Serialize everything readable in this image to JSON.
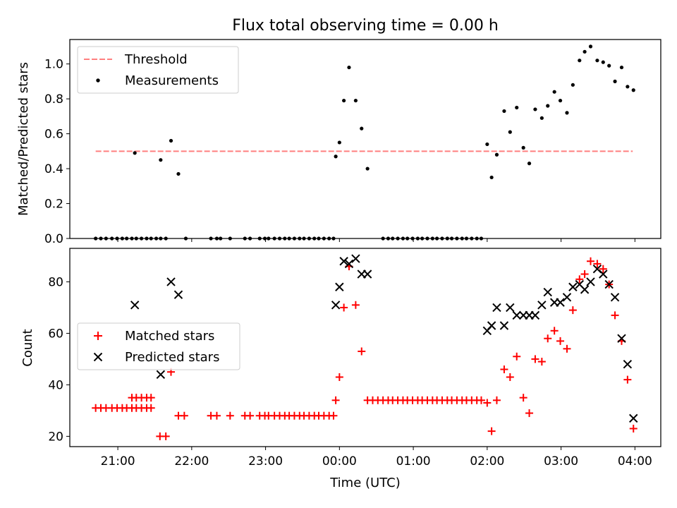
{
  "chart_data": {
    "title": "Flux total observing time = 0.00 h",
    "xlabel": "Time (UTC)",
    "x_unit": "hours (UTC clock, values after 24 are the following day)",
    "xlim": [
      20.35,
      28.35
    ],
    "x_ticks": [
      {
        "value": 21,
        "label": "21:00"
      },
      {
        "value": 22,
        "label": "22:00"
      },
      {
        "value": 23,
        "label": "23:00"
      },
      {
        "value": 24,
        "label": "00:00"
      },
      {
        "value": 25,
        "label": "01:00"
      },
      {
        "value": 26,
        "label": "02:00"
      },
      {
        "value": 27,
        "label": "03:00"
      },
      {
        "value": 28,
        "label": "04:00"
      }
    ],
    "top": {
      "type": "scatter",
      "ylabel": "Matched/Predicted stars",
      "ylim": [
        0,
        1.14
      ],
      "y_ticks": [
        "0.0",
        "0.2",
        "0.4",
        "0.6",
        "0.8",
        "1.0"
      ],
      "legend_position": "upper-left",
      "threshold": {
        "name": "Threshold",
        "y": 0.5,
        "x_start": 20.7,
        "x_end": 27.97,
        "color": "#ff7f7f"
      },
      "measurements": {
        "name": "Measurements",
        "color": "#000000",
        "points": [
          [
            20.7,
            0
          ],
          [
            20.77,
            0
          ],
          [
            20.84,
            0
          ],
          [
            20.92,
            0
          ],
          [
            20.99,
            0
          ],
          [
            21.06,
            0
          ],
          [
            21.12,
            0
          ],
          [
            21.19,
            0
          ],
          [
            21.25,
            0
          ],
          [
            21.32,
            0
          ],
          [
            21.39,
            0
          ],
          [
            21.45,
            0
          ],
          [
            21.52,
            0
          ],
          [
            21.58,
            0
          ],
          [
            21.65,
            0
          ],
          [
            21.92,
            0
          ],
          [
            22.26,
            0
          ],
          [
            22.34,
            0
          ],
          [
            22.39,
            0
          ],
          [
            22.52,
            0
          ],
          [
            22.72,
            0
          ],
          [
            22.79,
            0
          ],
          [
            22.92,
            0
          ],
          [
            22.99,
            0
          ],
          [
            23.04,
            0
          ],
          [
            23.12,
            0
          ],
          [
            23.19,
            0
          ],
          [
            23.26,
            0
          ],
          [
            23.32,
            0
          ],
          [
            23.39,
            0
          ],
          [
            23.46,
            0
          ],
          [
            23.52,
            0
          ],
          [
            23.59,
            0
          ],
          [
            23.66,
            0
          ],
          [
            23.72,
            0
          ],
          [
            23.79,
            0
          ],
          [
            23.86,
            0
          ],
          [
            23.92,
            0
          ],
          [
            24.59,
            0
          ],
          [
            24.66,
            0
          ],
          [
            24.72,
            0
          ],
          [
            24.79,
            0
          ],
          [
            24.86,
            0
          ],
          [
            24.92,
            0
          ],
          [
            24.99,
            0
          ],
          [
            25.06,
            0
          ],
          [
            25.12,
            0
          ],
          [
            25.19,
            0
          ],
          [
            25.26,
            0
          ],
          [
            25.32,
            0
          ],
          [
            25.39,
            0
          ],
          [
            25.46,
            0
          ],
          [
            25.52,
            0
          ],
          [
            25.59,
            0
          ],
          [
            25.66,
            0
          ],
          [
            25.72,
            0
          ],
          [
            25.79,
            0
          ],
          [
            25.86,
            0
          ],
          [
            25.92,
            0
          ],
          [
            21.23,
            0.49
          ],
          [
            21.58,
            0.45
          ],
          [
            21.72,
            0.56
          ],
          [
            21.82,
            0.37
          ],
          [
            23.95,
            0.47
          ],
          [
            24.0,
            0.55
          ],
          [
            24.06,
            0.79
          ],
          [
            24.13,
            0.98
          ],
          [
            24.22,
            0.79
          ],
          [
            24.3,
            0.63
          ],
          [
            24.38,
            0.4
          ],
          [
            26.0,
            0.54
          ],
          [
            26.06,
            0.35
          ],
          [
            26.13,
            0.48
          ],
          [
            26.23,
            0.73
          ],
          [
            26.31,
            0.61
          ],
          [
            26.4,
            0.75
          ],
          [
            26.49,
            0.52
          ],
          [
            26.57,
            0.43
          ],
          [
            26.65,
            0.74
          ],
          [
            26.74,
            0.69
          ],
          [
            26.82,
            0.76
          ],
          [
            26.91,
            0.84
          ],
          [
            26.99,
            0.79
          ],
          [
            27.08,
            0.72
          ],
          [
            27.16,
            0.88
          ],
          [
            27.25,
            1.02
          ],
          [
            27.32,
            1.07
          ],
          [
            27.4,
            1.1
          ],
          [
            27.49,
            1.02
          ],
          [
            27.57,
            1.01
          ],
          [
            27.65,
            0.99
          ],
          [
            27.73,
            0.9
          ],
          [
            27.82,
            0.98
          ],
          [
            27.9,
            0.87
          ],
          [
            27.98,
            0.85
          ]
        ]
      }
    },
    "bottom": {
      "type": "scatter",
      "ylabel": "Count",
      "ylim": [
        16,
        93
      ],
      "y_ticks": [
        "20",
        "40",
        "60",
        "80"
      ],
      "legend_position": "center-left",
      "matched": {
        "name": "Matched stars",
        "color": "#ff0000",
        "points": [
          [
            20.7,
            31
          ],
          [
            20.77,
            31
          ],
          [
            20.84,
            31
          ],
          [
            20.92,
            31
          ],
          [
            20.99,
            31
          ],
          [
            21.06,
            31
          ],
          [
            21.12,
            31
          ],
          [
            21.19,
            31
          ],
          [
            21.25,
            31
          ],
          [
            21.32,
            31
          ],
          [
            21.39,
            31
          ],
          [
            21.45,
            31
          ],
          [
            21.19,
            35
          ],
          [
            21.25,
            35
          ],
          [
            21.32,
            35
          ],
          [
            21.39,
            35
          ],
          [
            21.45,
            35
          ],
          [
            21.57,
            20
          ],
          [
            21.65,
            20
          ],
          [
            21.72,
            45
          ],
          [
            21.82,
            28
          ],
          [
            21.9,
            28
          ],
          [
            22.26,
            28
          ],
          [
            22.34,
            28
          ],
          [
            22.52,
            28
          ],
          [
            22.72,
            28
          ],
          [
            22.79,
            28
          ],
          [
            22.92,
            28
          ],
          [
            22.99,
            28
          ],
          [
            23.04,
            28
          ],
          [
            23.12,
            28
          ],
          [
            23.19,
            28
          ],
          [
            23.26,
            28
          ],
          [
            23.32,
            28
          ],
          [
            23.39,
            28
          ],
          [
            23.46,
            28
          ],
          [
            23.52,
            28
          ],
          [
            23.59,
            28
          ],
          [
            23.66,
            28
          ],
          [
            23.72,
            28
          ],
          [
            23.79,
            28
          ],
          [
            23.86,
            28
          ],
          [
            23.92,
            28
          ],
          [
            23.95,
            34
          ],
          [
            24.0,
            43
          ],
          [
            24.06,
            70
          ],
          [
            24.13,
            86
          ],
          [
            24.22,
            71
          ],
          [
            24.3,
            53
          ],
          [
            24.38,
            34
          ],
          [
            24.45,
            34
          ],
          [
            24.52,
            34
          ],
          [
            24.59,
            34
          ],
          [
            24.66,
            34
          ],
          [
            24.72,
            34
          ],
          [
            24.79,
            34
          ],
          [
            24.86,
            34
          ],
          [
            24.92,
            34
          ],
          [
            24.99,
            34
          ],
          [
            25.06,
            34
          ],
          [
            25.12,
            34
          ],
          [
            25.19,
            34
          ],
          [
            25.26,
            34
          ],
          [
            25.32,
            34
          ],
          [
            25.39,
            34
          ],
          [
            25.46,
            34
          ],
          [
            25.52,
            34
          ],
          [
            25.59,
            34
          ],
          [
            25.66,
            34
          ],
          [
            25.72,
            34
          ],
          [
            25.79,
            34
          ],
          [
            25.86,
            34
          ],
          [
            25.92,
            34
          ],
          [
            26.0,
            33
          ],
          [
            26.06,
            22
          ],
          [
            26.13,
            34
          ],
          [
            26.23,
            46
          ],
          [
            26.31,
            43
          ],
          [
            26.4,
            51
          ],
          [
            26.49,
            35
          ],
          [
            26.57,
            29
          ],
          [
            26.65,
            50
          ],
          [
            26.74,
            49
          ],
          [
            26.82,
            58
          ],
          [
            26.91,
            61
          ],
          [
            26.99,
            57
          ],
          [
            27.08,
            54
          ],
          [
            27.16,
            69
          ],
          [
            27.25,
            81
          ],
          [
            27.32,
            83
          ],
          [
            27.4,
            88
          ],
          [
            27.49,
            87
          ],
          [
            27.57,
            85
          ],
          [
            27.65,
            79
          ],
          [
            27.73,
            67
          ],
          [
            27.82,
            57
          ],
          [
            27.9,
            42
          ],
          [
            27.98,
            23
          ]
        ]
      },
      "predicted": {
        "name": "Predicted stars",
        "color": "#000000",
        "points": [
          [
            21.23,
            71
          ],
          [
            21.58,
            44
          ],
          [
            21.72,
            80
          ],
          [
            21.82,
            75
          ],
          [
            23.95,
            71
          ],
          [
            24.0,
            78
          ],
          [
            24.06,
            88
          ],
          [
            24.13,
            87
          ],
          [
            24.22,
            89
          ],
          [
            24.3,
            83
          ],
          [
            24.38,
            83
          ],
          [
            26.0,
            61
          ],
          [
            26.06,
            63
          ],
          [
            26.13,
            70
          ],
          [
            26.23,
            63
          ],
          [
            26.31,
            70
          ],
          [
            26.4,
            67
          ],
          [
            26.49,
            67
          ],
          [
            26.57,
            67
          ],
          [
            26.65,
            67
          ],
          [
            26.74,
            71
          ],
          [
            26.82,
            76
          ],
          [
            26.91,
            72
          ],
          [
            26.99,
            72
          ],
          [
            27.08,
            74
          ],
          [
            27.16,
            78
          ],
          [
            27.25,
            79
          ],
          [
            27.32,
            77
          ],
          [
            27.4,
            80
          ],
          [
            27.49,
            85
          ],
          [
            27.57,
            83
          ],
          [
            27.65,
            79
          ],
          [
            27.73,
            74
          ],
          [
            27.82,
            58
          ],
          [
            27.9,
            48
          ],
          [
            27.98,
            27
          ]
        ]
      }
    }
  }
}
